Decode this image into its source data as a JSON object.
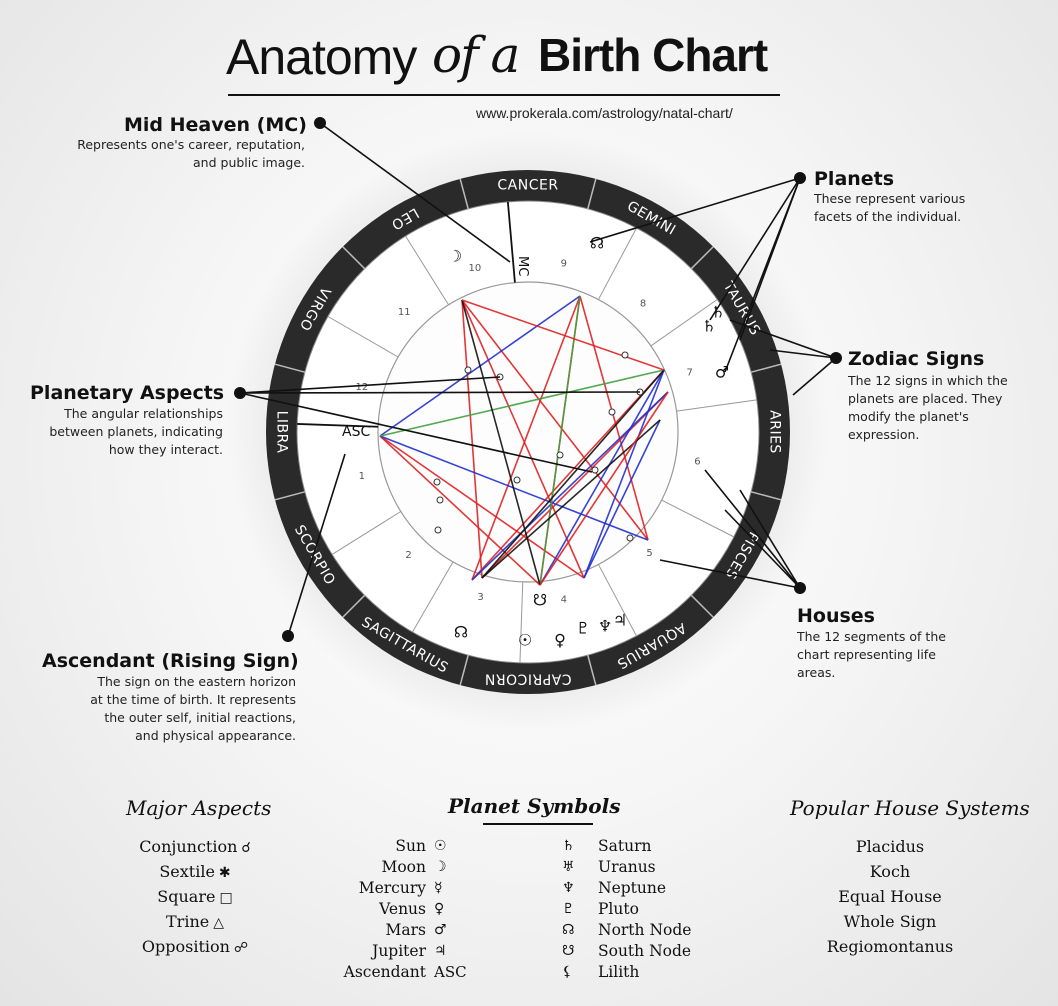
{
  "header": {
    "title_part1": "Anatomy",
    "title_part2": "of a",
    "title_part3": "Birth Chart",
    "url": "www.prokerala.com/astrology/natal-chart/"
  },
  "callouts": {
    "midheaven": {
      "title": "Mid Heaven (MC)",
      "desc": "Represents one's career, reputation,\nand public image."
    },
    "planets": {
      "title": "Planets",
      "desc": "These represent various\nfacets of the individual."
    },
    "aspects": {
      "title": "Planetary Aspects",
      "desc": "The angular relationships\nbetween planets, indicating\nhow they interact."
    },
    "zodiac": {
      "title": "Zodiac Signs",
      "desc": "The 12 signs in which the\nplanets are placed. They\nmodify the planet's\nexpression."
    },
    "houses": {
      "title": "Houses",
      "desc": "The 12 segments of the\nchart representing life\nareas."
    },
    "ascendant": {
      "title": "Ascendant (Rising Sign)",
      "desc": "The sign on the eastern horizon\nat the time of birth. It represents\nthe outer self, initial reactions,\nand physical appearance."
    }
  },
  "wheel": {
    "signs": [
      "CANCER",
      "GEMINI",
      "TAURUS",
      "ARIES",
      "PISCES",
      "AQUARIUS",
      "CAPRICORN",
      "SAGITTARIUS",
      "SCORPIO",
      "LIBRA",
      "VIRGO",
      "LEO"
    ],
    "houses": [
      "10",
      "9",
      "8",
      "7",
      "6",
      "5",
      "4",
      "3",
      "2",
      "1",
      "12",
      "11"
    ],
    "asc_label": "ASC",
    "mc_label": "MC",
    "ring_color": "#2a2a2a",
    "aspect_colors": {
      "red": "#e02020",
      "blue": "#2030d0",
      "green": "#40a040",
      "black": "#111111"
    }
  },
  "legend": {
    "aspects": {
      "title": "Major Aspects",
      "items": [
        {
          "name": "Conjunction",
          "symbol": "☌"
        },
        {
          "name": "Sextile",
          "symbol": "✱"
        },
        {
          "name": "Square",
          "symbol": "□"
        },
        {
          "name": "Trine",
          "symbol": "△"
        },
        {
          "name": "Opposition",
          "symbol": "☍"
        }
      ]
    },
    "planets": {
      "title": "Planet Symbols",
      "left": [
        {
          "name": "Sun",
          "symbol": "☉"
        },
        {
          "name": "Moon",
          "symbol": "☽"
        },
        {
          "name": "Mercury",
          "symbol": "☿"
        },
        {
          "name": "Venus",
          "symbol": "♀"
        },
        {
          "name": "Mars",
          "symbol": "♂"
        },
        {
          "name": "Jupiter",
          "symbol": "♃"
        },
        {
          "name": "Ascendant",
          "symbol": "ASC"
        }
      ],
      "right": [
        {
          "name": "Saturn",
          "symbol": "♄"
        },
        {
          "name": "Uranus",
          "symbol": "♅"
        },
        {
          "name": "Neptune",
          "symbol": "♆"
        },
        {
          "name": "Pluto",
          "symbol": "♇"
        },
        {
          "name": "North Node",
          "symbol": "☊"
        },
        {
          "name": "South Node",
          "symbol": "☋"
        },
        {
          "name": "Lilith",
          "symbol": "⚸"
        }
      ]
    },
    "houses": {
      "title": "Popular House Systems",
      "items": [
        "Placidus",
        "Koch",
        "Equal House",
        "Whole Sign",
        "Regiomontanus"
      ]
    }
  }
}
